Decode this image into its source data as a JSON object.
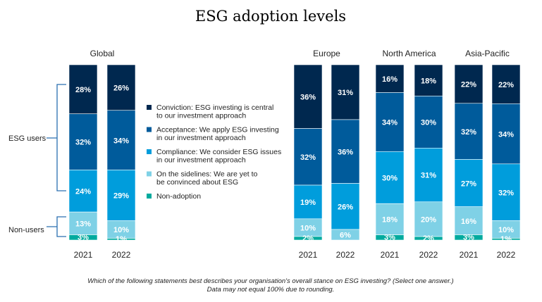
{
  "chart_data": {
    "type": "bar",
    "stacked": true,
    "title": "ESG adoption levels",
    "categories_series_order": [
      "Conviction",
      "Acceptance",
      "Compliance",
      "On the sidelines",
      "Non-adoption"
    ],
    "legend": [
      {
        "name": "Conviction",
        "lines": [
          "Conviction: ESG investing is central",
          "to our investment approach"
        ],
        "color": "#00284f"
      },
      {
        "name": "Acceptance",
        "lines": [
          "Acceptance: We apply ESG investing",
          "in our investment approach"
        ],
        "color": "#005b9b"
      },
      {
        "name": "Compliance",
        "lines": [
          "Compliance: We consider ESG issues",
          "in our investment approach"
        ],
        "color": "#009ddc"
      },
      {
        "name": "On the sidelines",
        "lines": [
          "On the sidelines: We are yet to",
          "be convinced about ESG"
        ],
        "color": "#7fd1e6"
      },
      {
        "name": "Non-adoption",
        "lines": [
          "Non-adoption"
        ],
        "color": "#00aa9e"
      }
    ],
    "legend_position": "right of Global panel",
    "groups": {
      "esg_users": "ESG users",
      "non_users": "Non-users"
    },
    "panels": [
      {
        "title": "Global",
        "bars": [
          {
            "year": "2021",
            "values": [
              28,
              32,
              24,
              13,
              3
            ]
          },
          {
            "year": "2022",
            "values": [
              26,
              34,
              29,
              10,
              1
            ]
          }
        ]
      },
      {
        "title": "Europe",
        "bars": [
          {
            "year": "2021",
            "values": [
              36,
              32,
              19,
              10,
              2
            ]
          },
          {
            "year": "2022",
            "values": [
              31,
              36,
              26,
              6,
              null
            ]
          }
        ]
      },
      {
        "title": "North America",
        "bars": [
          {
            "year": "2021",
            "values": [
              16,
              34,
              30,
              18,
              3
            ]
          },
          {
            "year": "2022",
            "values": [
              18,
              30,
              31,
              20,
              2
            ]
          }
        ]
      },
      {
        "title": "Asia-Pacific",
        "bars": [
          {
            "year": "2021",
            "values": [
              22,
              32,
              27,
              16,
              3
            ]
          },
          {
            "year": "2022",
            "values": [
              22,
              34,
              32,
              10,
              1
            ]
          }
        ]
      }
    ],
    "unit": "%",
    "footnote": [
      "Which of the following statements best describes your organisation's overall stance on ESG investing? (Select one answer.)",
      "Data may not equal 100% due to rounding."
    ]
  }
}
